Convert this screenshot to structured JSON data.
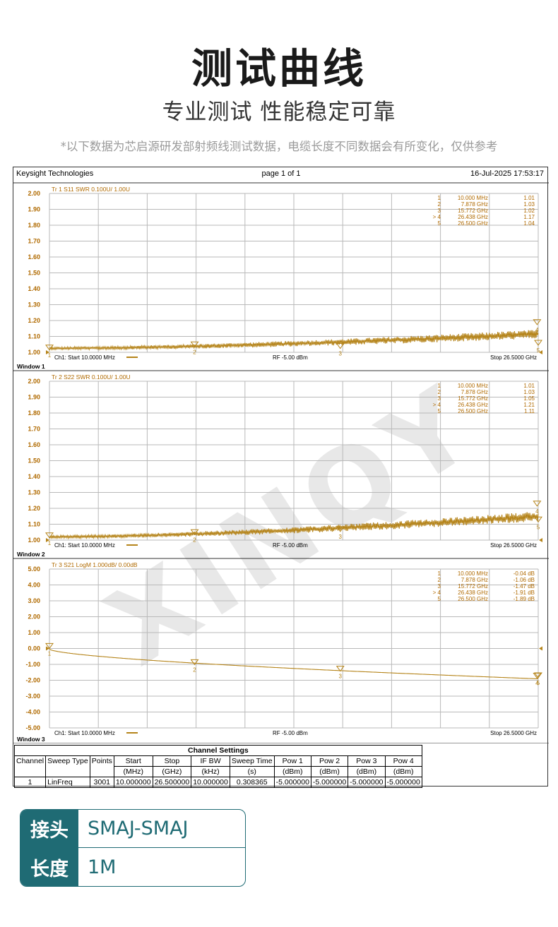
{
  "header": {
    "title": "测试曲线",
    "subtitle": "专业测试 性能稳定可靠",
    "note": "*以下数据为芯启源研发部射频线测试数据，电缆长度不同数据会有所变化，仅供参考"
  },
  "instrument": {
    "brand": "Keysight Technologies",
    "page": "page  1  of  1",
    "datetime": "16-Jul-2025   17:53:17",
    "watermark": "XINQY"
  },
  "colors": {
    "trace": "#b5841a",
    "grid": "#b9b9b9",
    "accent": "#1f6b74"
  },
  "chart_data": [
    {
      "type": "line",
      "window_label": "Window 1",
      "trace_label": "Tr  1   S11  SWR  0.100U/  1.00U",
      "ylim": [
        1.0,
        2.0
      ],
      "yticks": [
        "2.00",
        "1.90",
        "1.80",
        "1.70",
        "1.60",
        "1.50",
        "1.40",
        "1.30",
        "1.20",
        "1.10",
        "1.00"
      ],
      "xlim_ghz": [
        0.01,
        26.5
      ],
      "start_label": "Ch1:  Start  10.0000 MHz",
      "rf_label": "RF   -5.00 dBm",
      "stop_label": "Stop  26.5000 GHz",
      "baseline_start": 1.025,
      "baseline_end": 1.115,
      "ripple": 0.045,
      "markers": [
        {
          "id": "1",
          "freq_label": "10.000  MHz",
          "freq_ghz": 0.01,
          "value_label": "1.01",
          "value": 1.01
        },
        {
          "id": "2",
          "freq_label": "7.878  GHz",
          "freq_ghz": 7.878,
          "value_label": "1.03",
          "value": 1.03
        },
        {
          "id": "3",
          "freq_label": "15.772  GHz",
          "freq_ghz": 15.772,
          "value_label": "1.02",
          "value": 1.02
        },
        {
          "id": "4",
          "freq_label": "26.438  GHz",
          "freq_ghz": 26.438,
          "value_label": "1.17",
          "value": 1.17,
          "active": true
        },
        {
          "id": "5",
          "freq_label": "26.500  GHz",
          "freq_ghz": 26.5,
          "value_label": "1.04",
          "value": 1.04
        }
      ]
    },
    {
      "type": "line",
      "window_label": "Window 2",
      "trace_label": "Tr  2   S22  SWR  0.100U/  1.00U",
      "ylim": [
        1.0,
        2.0
      ],
      "yticks": [
        "2.00",
        "1.90",
        "1.80",
        "1.70",
        "1.60",
        "1.50",
        "1.40",
        "1.30",
        "1.20",
        "1.10",
        "1.00"
      ],
      "xlim_ghz": [
        0.01,
        26.5
      ],
      "start_label": "Ch1:  Start  10.0000 MHz",
      "rf_label": "RF   -5.00 dBm",
      "stop_label": "Stop  26.5000 GHz",
      "baseline_start": 1.02,
      "baseline_end": 1.15,
      "ripple": 0.05,
      "markers": [
        {
          "id": "1",
          "freq_label": "10.000  MHz",
          "freq_ghz": 0.01,
          "value_label": "1.01",
          "value": 1.01
        },
        {
          "id": "2",
          "freq_label": "7.878  GHz",
          "freq_ghz": 7.878,
          "value_label": "1.03",
          "value": 1.03
        },
        {
          "id": "3",
          "freq_label": "15.772  GHz",
          "freq_ghz": 15.772,
          "value_label": "1.05",
          "value": 1.05
        },
        {
          "id": "4",
          "freq_label": "26.438  GHz",
          "freq_ghz": 26.438,
          "value_label": "1.21",
          "value": 1.21,
          "active": true
        },
        {
          "id": "5",
          "freq_label": "26.500  GHz",
          "freq_ghz": 26.5,
          "value_label": "1.11",
          "value": 1.11
        }
      ]
    },
    {
      "type": "line",
      "window_label": "Window 3",
      "trace_label": "Tr  3   S21  LogM  1.000dB/  0.00dB",
      "ylim": [
        -5.0,
        5.0
      ],
      "yticks": [
        "5.00",
        "4.00",
        "3.00",
        "2.00",
        "1.00",
        "0.00",
        "-1.00",
        "-2.00",
        "-3.00",
        "-4.00",
        "-5.00"
      ],
      "xlim_ghz": [
        0.01,
        26.5
      ],
      "start_label": "Ch1:  Start  10.0000 MHz",
      "rf_label": "RF   -5.00 dBm",
      "stop_label": "Stop  26.5000 GHz",
      "markers": [
        {
          "id": "1",
          "freq_label": "10.000  MHz",
          "freq_ghz": 0.01,
          "value_label": "-0.04  dB",
          "value": -0.04
        },
        {
          "id": "2",
          "freq_label": "7.878  GHz",
          "freq_ghz": 7.878,
          "value_label": "-1.06  dB",
          "value": -1.06
        },
        {
          "id": "3",
          "freq_label": "15.772  GHz",
          "freq_ghz": 15.772,
          "value_label": "-1.47  dB",
          "value": -1.47
        },
        {
          "id": "4",
          "freq_label": "26.438  GHz",
          "freq_ghz": 26.438,
          "value_label": "-1.91  dB",
          "value": -1.91,
          "active": true
        },
        {
          "id": "5",
          "freq_label": "26.500  GHz",
          "freq_ghz": 26.5,
          "value_label": "-1.89  dB",
          "value": -1.89
        }
      ]
    }
  ],
  "channel_settings": {
    "title": "Channel Settings",
    "headers": [
      [
        "Channel",
        ""
      ],
      [
        "Sweep Type",
        ""
      ],
      [
        "Points",
        ""
      ],
      [
        "Start",
        "(MHz)"
      ],
      [
        "Stop",
        "(GHz)"
      ],
      [
        "IF BW",
        "(kHz)"
      ],
      [
        "Sweep Time",
        "(s)"
      ],
      [
        "Pow 1",
        "(dBm)"
      ],
      [
        "Pow 2",
        "(dBm)"
      ],
      [
        "Pow 3",
        "(dBm)"
      ],
      [
        "Pow 4",
        "(dBm)"
      ]
    ],
    "row": [
      "1",
      "LinFreq",
      "3001",
      "10.000000",
      "26.500000",
      "10.000000",
      "0.308365",
      "-5.000000",
      "-5.000000",
      "-5.000000",
      "-5.000000"
    ]
  },
  "spec": {
    "connector_key": "接头",
    "connector_value": "SMAJ-SMAJ",
    "length_key": "长度",
    "length_value": "1M"
  }
}
